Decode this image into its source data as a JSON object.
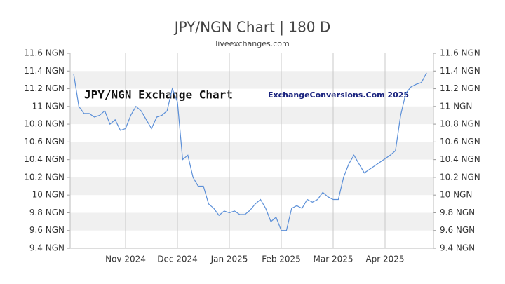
{
  "chart_data": {
    "type": "line",
    "title": "JPY/NGN Chart | 180 D",
    "subtitle": "liveexchanges.com",
    "annotations": [
      "JPY/NGN Exchange Chart",
      "ExchangeConversions.Com 2025"
    ],
    "color": "#5b8fd8",
    "grid": true,
    "bands": true,
    "categories": [
      null,
      null,
      null,
      null,
      null,
      null,
      null,
      null,
      null,
      null,
      "Nov 2024",
      null,
      null,
      null,
      null,
      null,
      null,
      null,
      null,
      null,
      "Dec 2024",
      null,
      null,
      null,
      null,
      null,
      null,
      null,
      null,
      null,
      "Jan 2025",
      null,
      null,
      null,
      null,
      null,
      null,
      null,
      null,
      null,
      "Feb 2025",
      null,
      null,
      null,
      null,
      null,
      null,
      null,
      null,
      null,
      "Mar 2025",
      null,
      null,
      null,
      null,
      null,
      null,
      null,
      null,
      null,
      "Apr 2025",
      null,
      null,
      null,
      null,
      null,
      null,
      null,
      null
    ],
    "values": [
      11.37,
      11.0,
      10.92,
      10.92,
      10.88,
      10.9,
      10.95,
      10.8,
      10.85,
      10.73,
      10.75,
      10.9,
      11.0,
      10.95,
      10.85,
      10.75,
      10.88,
      10.9,
      10.95,
      11.2,
      11.05,
      10.4,
      10.45,
      10.2,
      10.1,
      10.1,
      9.9,
      9.85,
      9.77,
      9.82,
      9.8,
      9.82,
      9.78,
      9.78,
      9.83,
      9.9,
      9.95,
      9.85,
      9.7,
      9.75,
      9.6,
      9.6,
      9.85,
      9.88,
      9.85,
      9.95,
      9.92,
      9.95,
      10.03,
      9.98,
      9.95,
      9.95,
      10.2,
      10.35,
      10.45,
      10.35,
      10.25,
      10.29,
      10.33,
      10.37,
      10.41,
      10.45,
      10.5,
      10.9,
      11.15,
      11.22,
      11.25,
      11.27,
      11.38
    ],
    "ylim": [
      9.4,
      11.6
    ],
    "yticks": [
      {
        "value": 9.4,
        "label": "9.4 NGN"
      },
      {
        "value": 9.6,
        "label": "9.6 NGN"
      },
      {
        "value": 9.8,
        "label": "9.8 NGN"
      },
      {
        "value": 10,
        "label": "10 NGN"
      },
      {
        "value": 10.2,
        "label": "10.2 NGN"
      },
      {
        "value": 10.4,
        "label": "10.4 NGN"
      },
      {
        "value": 10.6,
        "label": "10.6 NGN"
      },
      {
        "value": 10.8,
        "label": "10.8 NGN"
      },
      {
        "value": 11,
        "label": "11 NGN"
      },
      {
        "value": 11.2,
        "label": "11.2 NGN"
      },
      {
        "value": 11.4,
        "label": "11.4 NGN"
      },
      {
        "value": 11.6,
        "label": "11.6 NGN"
      }
    ]
  }
}
